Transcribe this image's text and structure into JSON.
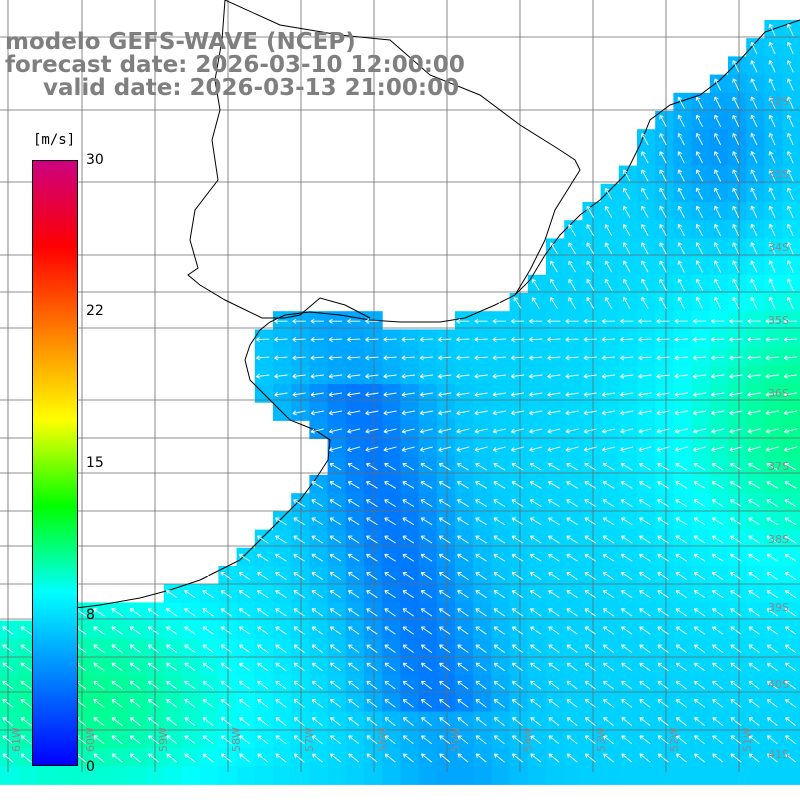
{
  "titles": {
    "line1": "modelo GEFS-WAVE (NCEP)",
    "line2": "forecast date: 2026-03-10 12:00:00",
    "line3": "valid date: 2026-03-13 21:00:00"
  },
  "colorbar": {
    "unit": "[m/s]",
    "range": [
      0,
      30
    ],
    "ticks": [
      "30",
      "22",
      "15",
      "8",
      "0"
    ],
    "colors": [
      "#0000ff",
      "#0080ff",
      "#00ffff",
      "#00ff00",
      "#ffff00",
      "#ff8000",
      "#ff0000",
      "#cc0080"
    ]
  },
  "map": {
    "lon_range": [
      -61,
      -50
    ],
    "lat_range": [
      -42,
      -31
    ],
    "lat_labels": [
      "32S",
      "33S",
      "34S",
      "35S",
      "36S",
      "37S",
      "38S",
      "39S",
      "40S",
      "41S"
    ],
    "lon_labels": [
      "61W",
      "60W",
      "59W",
      "58W",
      "57W",
      "56W",
      "55W",
      "54W",
      "53W",
      "52W",
      "51W"
    ],
    "grid": true,
    "coastline_color": "#000000",
    "land_color": "#ffffff",
    "arrow_color": "#ffffff"
  }
}
